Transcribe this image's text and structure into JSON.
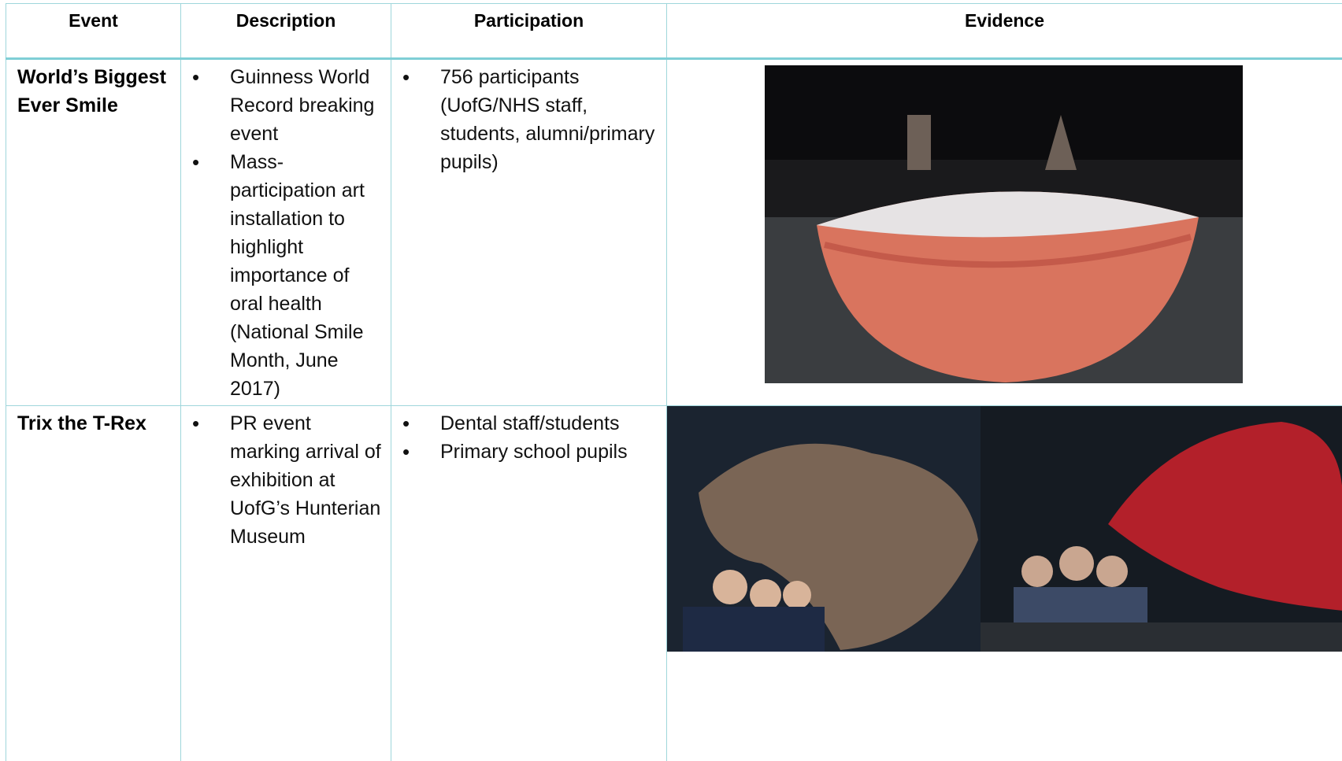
{
  "table": {
    "headers": [
      "Event",
      "Description",
      "Participation",
      "Evidence"
    ],
    "rows": [
      {
        "event": "World’s Biggest Ever Smile",
        "description": [
          "Guinness World Record breaking event",
          "Mass-participation art installation to highlight importance of oral health (National Smile Month, June 2017)"
        ],
        "participation": [
          "756 participants (UofG/NHS staff, students, alumni/primary pupils)"
        ]
      },
      {
        "event": "Trix the T-Rex",
        "description": [
          "PR event marking arrival of exhibition at UofG’s Hunterian Museum"
        ],
        "participation": [
          "Dental staff/students",
          "Primary school pupils"
        ]
      }
    ]
  }
}
